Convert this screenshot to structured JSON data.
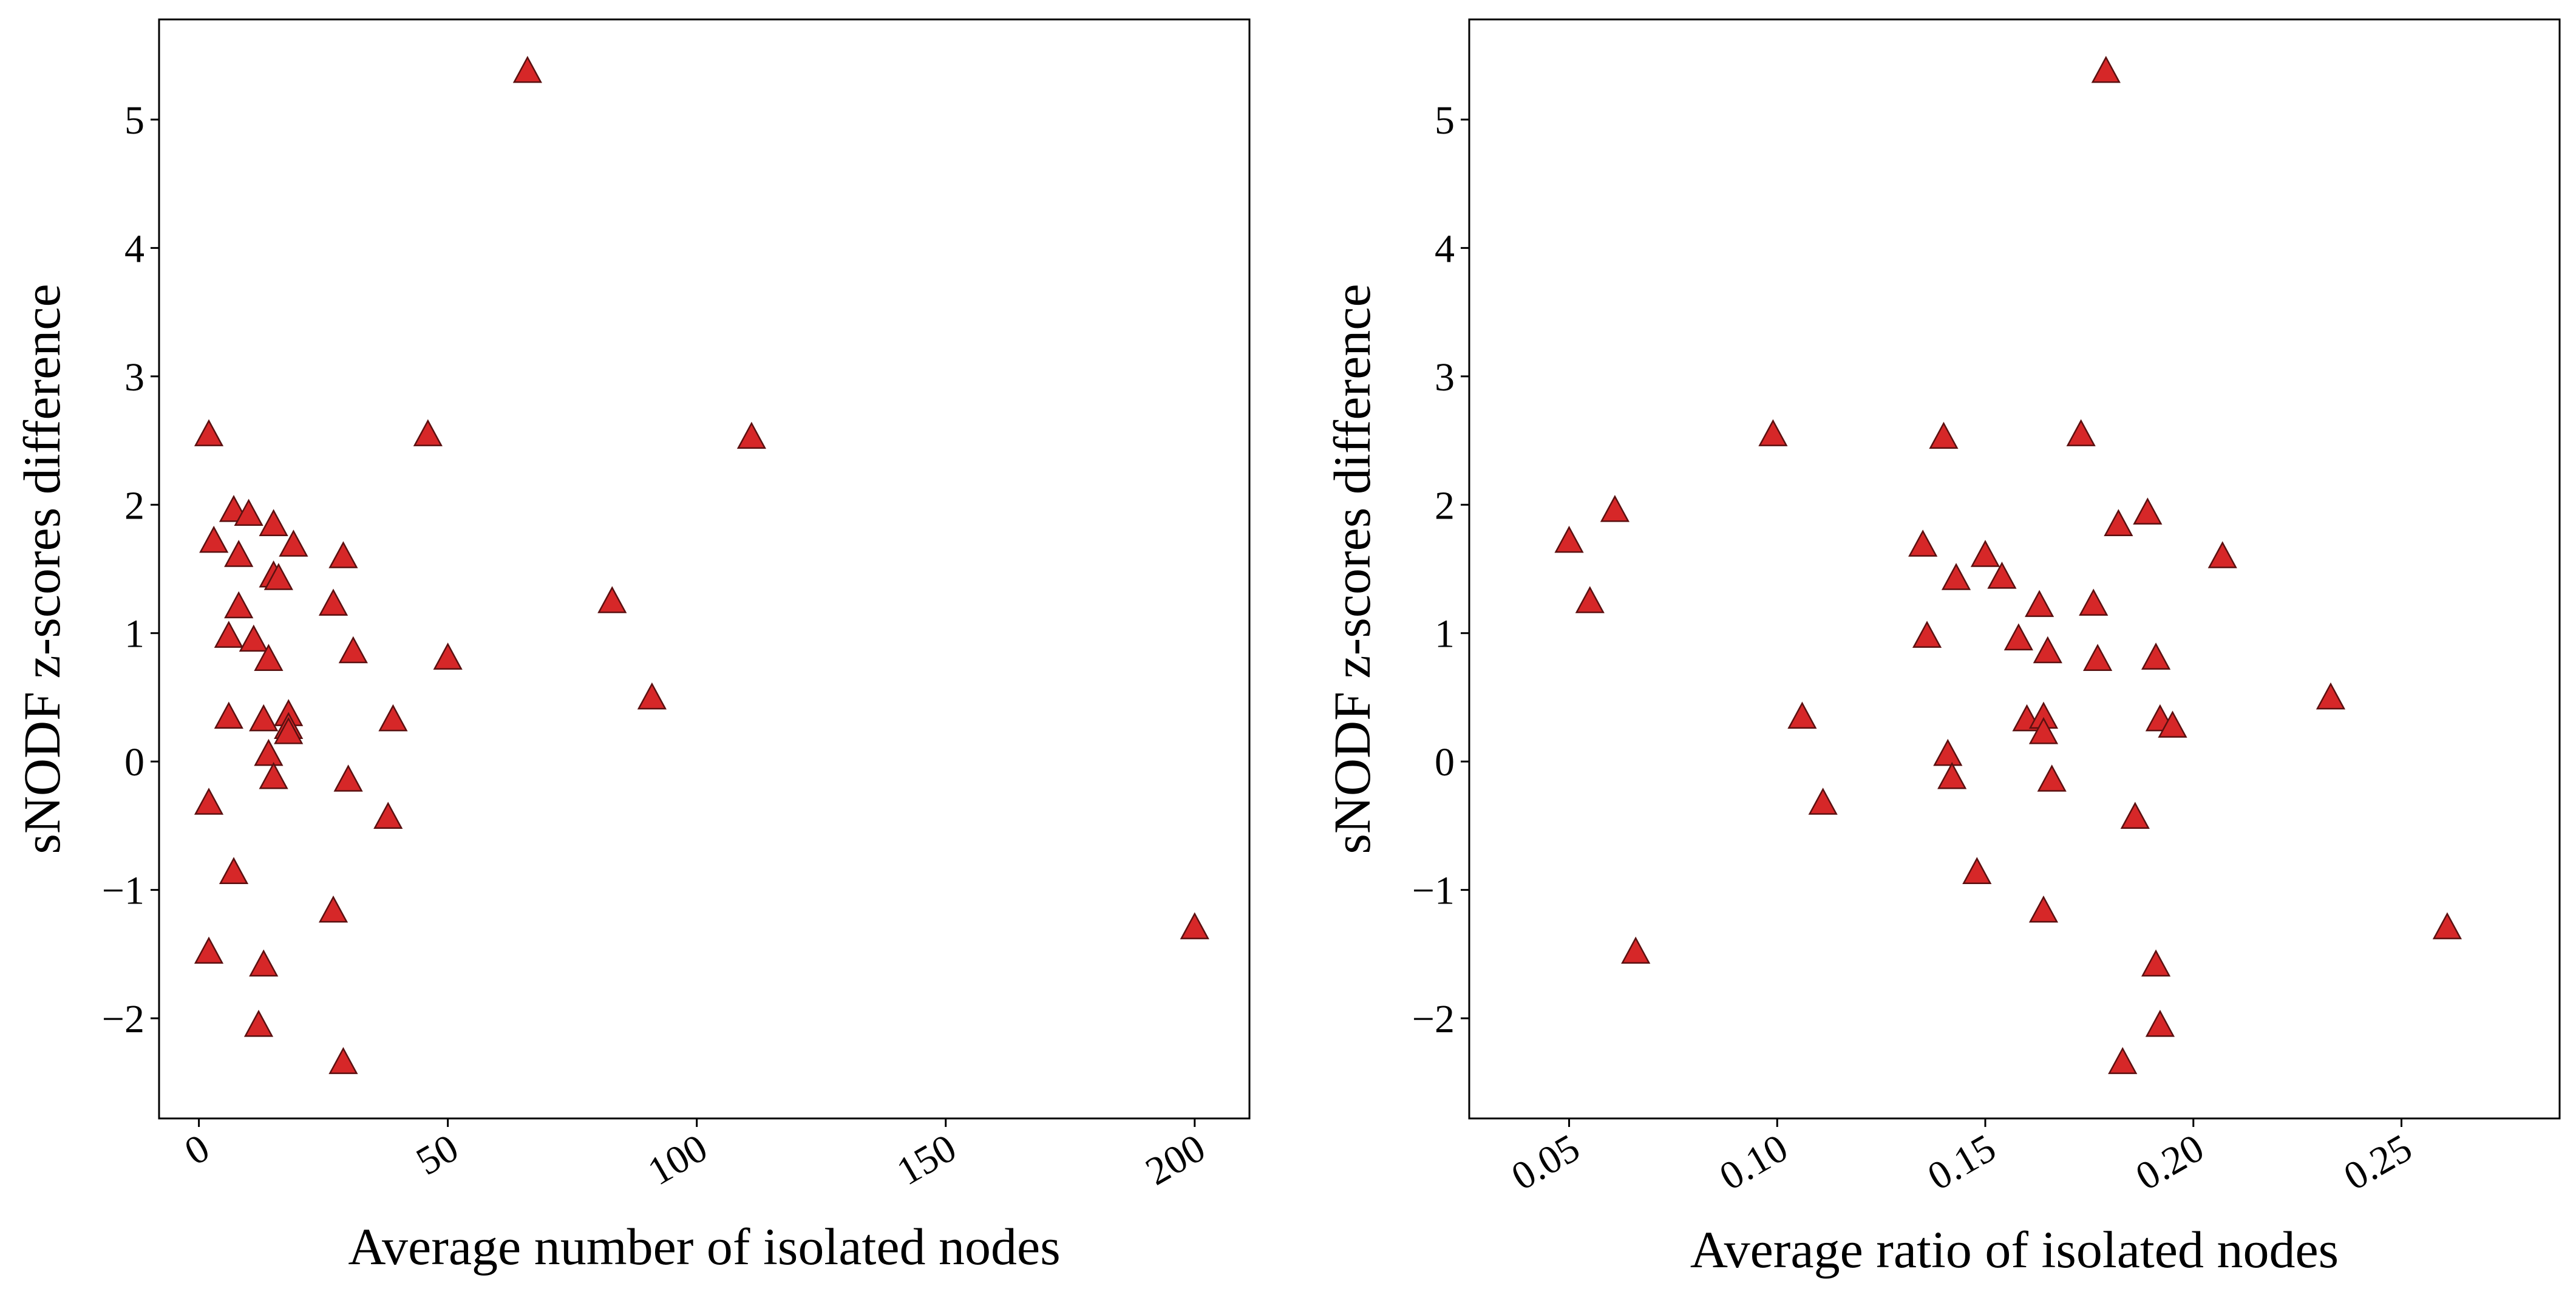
{
  "marker_color": "#d62728",
  "marker_edge_color": "#5a1010",
  "marker_shape": "triangle-up",
  "chart_data": [
    {
      "type": "scatter",
      "xlabel": "Average number of isolated nodes",
      "ylabel": "sNODF z-scores difference",
      "xlim": [
        -8,
        211
      ],
      "ylim": [
        -2.78,
        5.78
      ],
      "xticks": [
        0,
        50,
        100,
        150,
        200
      ],
      "xtick_labels": [
        "0",
        "50",
        "100",
        "150",
        "200"
      ],
      "yticks": [
        -2,
        -1,
        0,
        1,
        2,
        3,
        4,
        5
      ],
      "ytick_labels": [
        "−2",
        "−1",
        "0",
        "1",
        "2",
        "3",
        "4",
        "5"
      ],
      "points": [
        {
          "x": 66,
          "y": 5.38
        },
        {
          "x": 2,
          "y": 2.55
        },
        {
          "x": 46,
          "y": 2.55
        },
        {
          "x": 111,
          "y": 2.53
        },
        {
          "x": 7,
          "y": 1.96
        },
        {
          "x": 10,
          "y": 1.93
        },
        {
          "x": 3,
          "y": 1.72
        },
        {
          "x": 15,
          "y": 1.85
        },
        {
          "x": 19,
          "y": 1.69
        },
        {
          "x": 8,
          "y": 1.61
        },
        {
          "x": 29,
          "y": 1.6
        },
        {
          "x": 15,
          "y": 1.45
        },
        {
          "x": 16,
          "y": 1.43
        },
        {
          "x": 8,
          "y": 1.21
        },
        {
          "x": 27,
          "y": 1.23
        },
        {
          "x": 83,
          "y": 1.25
        },
        {
          "x": 6,
          "y": 0.98
        },
        {
          "x": 11,
          "y": 0.95
        },
        {
          "x": 14,
          "y": 0.8
        },
        {
          "x": 31,
          "y": 0.86
        },
        {
          "x": 50,
          "y": 0.81
        },
        {
          "x": 91,
          "y": 0.5
        },
        {
          "x": 6,
          "y": 0.35
        },
        {
          "x": 13,
          "y": 0.33
        },
        {
          "x": 18,
          "y": 0.37
        },
        {
          "x": 18,
          "y": 0.27
        },
        {
          "x": 18,
          "y": 0.23
        },
        {
          "x": 39,
          "y": 0.33
        },
        {
          "x": 14,
          "y": 0.06
        },
        {
          "x": 15,
          "y": -0.12
        },
        {
          "x": 30,
          "y": -0.14
        },
        {
          "x": 2,
          "y": -0.32
        },
        {
          "x": 38,
          "y": -0.43
        },
        {
          "x": 7,
          "y": -0.86
        },
        {
          "x": 27,
          "y": -1.16
        },
        {
          "x": 200,
          "y": -1.29
        },
        {
          "x": 2,
          "y": -1.48
        },
        {
          "x": 13,
          "y": -1.58
        },
        {
          "x": 12,
          "y": -2.05
        },
        {
          "x": 29,
          "y": -2.34
        }
      ]
    },
    {
      "type": "scatter",
      "xlabel": "Average ratio of isolated nodes",
      "ylabel": "sNODF z-scores difference",
      "xlim": [
        0.026,
        0.288
      ],
      "ylim": [
        -2.78,
        5.78
      ],
      "xticks": [
        0.05,
        0.1,
        0.15,
        0.2,
        0.25
      ],
      "xtick_labels": [
        "0.05",
        "0.10",
        "0.15",
        "0.20",
        "0.25"
      ],
      "yticks": [
        -2,
        -1,
        0,
        1,
        2,
        3,
        4,
        5
      ],
      "ytick_labels": [
        "−2",
        "−1",
        "0",
        "1",
        "2",
        "3",
        "4",
        "5"
      ],
      "points": [
        {
          "x": 0.179,
          "y": 5.38
        },
        {
          "x": 0.099,
          "y": 2.55
        },
        {
          "x": 0.14,
          "y": 2.53
        },
        {
          "x": 0.173,
          "y": 2.55
        },
        {
          "x": 0.061,
          "y": 1.96
        },
        {
          "x": 0.189,
          "y": 1.94
        },
        {
          "x": 0.05,
          "y": 1.72
        },
        {
          "x": 0.182,
          "y": 1.85
        },
        {
          "x": 0.135,
          "y": 1.69
        },
        {
          "x": 0.15,
          "y": 1.61
        },
        {
          "x": 0.207,
          "y": 1.6
        },
        {
          "x": 0.143,
          "y": 1.43
        },
        {
          "x": 0.154,
          "y": 1.44
        },
        {
          "x": 0.055,
          "y": 1.25
        },
        {
          "x": 0.163,
          "y": 1.22
        },
        {
          "x": 0.176,
          "y": 1.23
        },
        {
          "x": 0.136,
          "y": 0.98
        },
        {
          "x": 0.158,
          "y": 0.96
        },
        {
          "x": 0.165,
          "y": 0.86
        },
        {
          "x": 0.177,
          "y": 0.8
        },
        {
          "x": 0.191,
          "y": 0.81
        },
        {
          "x": 0.233,
          "y": 0.5
        },
        {
          "x": 0.106,
          "y": 0.35
        },
        {
          "x": 0.16,
          "y": 0.33
        },
        {
          "x": 0.164,
          "y": 0.35
        },
        {
          "x": 0.164,
          "y": 0.23
        },
        {
          "x": 0.192,
          "y": 0.33
        },
        {
          "x": 0.195,
          "y": 0.28
        },
        {
          "x": 0.141,
          "y": 0.06
        },
        {
          "x": 0.142,
          "y": -0.12
        },
        {
          "x": 0.166,
          "y": -0.14
        },
        {
          "x": 0.111,
          "y": -0.32
        },
        {
          "x": 0.186,
          "y": -0.43
        },
        {
          "x": 0.148,
          "y": -0.86
        },
        {
          "x": 0.164,
          "y": -1.16
        },
        {
          "x": 0.261,
          "y": -1.29
        },
        {
          "x": 0.066,
          "y": -1.48
        },
        {
          "x": 0.191,
          "y": -1.58
        },
        {
          "x": 0.192,
          "y": -2.05
        },
        {
          "x": 0.183,
          "y": -2.34
        }
      ]
    }
  ]
}
